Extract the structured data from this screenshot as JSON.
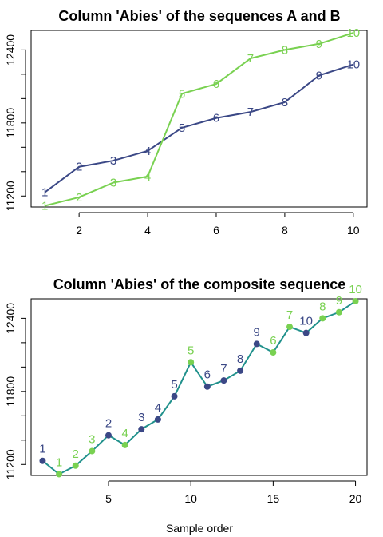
{
  "colors": {
    "seq_a": "#3b4886",
    "seq_b": "#79d151",
    "composite_line": "#21918c",
    "frame": "#000000"
  },
  "chart_data": [
    {
      "type": "line",
      "title": "Column 'Abies' of the sequences A and B",
      "xlabel": "",
      "ylabel": "",
      "xlim": [
        0.6,
        10.4
      ],
      "ylim": [
        11110,
        12560
      ],
      "x_ticks": [
        2,
        4,
        6,
        8,
        10
      ],
      "y_ticks": [
        11200,
        11800,
        12400
      ],
      "grid": false,
      "legend": "none",
      "series": [
        {
          "color_key": "seq_a",
          "x": [
            1,
            2,
            3,
            4,
            5,
            6,
            7,
            8,
            9,
            10
          ],
          "y": [
            11230,
            11440,
            11490,
            11570,
            11760,
            11840,
            11890,
            11970,
            12190,
            12280
          ],
          "labels": [
            "1",
            "2",
            "3",
            "4",
            "5",
            "6",
            "7",
            "8",
            "9",
            "10"
          ]
        },
        {
          "color_key": "seq_b",
          "x": [
            1,
            2,
            3,
            4,
            5,
            6,
            7,
            8,
            9,
            10
          ],
          "y": [
            11120,
            11190,
            11310,
            11360,
            12040,
            12120,
            12330,
            12400,
            12450,
            12540
          ],
          "labels": [
            "1",
            "2",
            "3",
            "4",
            "5",
            "6",
            "7",
            "8",
            "9",
            "10"
          ]
        }
      ]
    },
    {
      "type": "line",
      "title": "Column 'Abies' of the composite sequence",
      "xlabel": "Sample order",
      "ylabel": "",
      "xlim": [
        0.3,
        20.7
      ],
      "ylim": [
        11110,
        12560
      ],
      "x_ticks": [
        5,
        10,
        15,
        20
      ],
      "y_ticks": [
        11200,
        11800,
        12400
      ],
      "grid": false,
      "legend": "none",
      "x": [
        1,
        2,
        3,
        4,
        5,
        6,
        7,
        8,
        9,
        10,
        11,
        12,
        13,
        14,
        15,
        16,
        17,
        18,
        19,
        20
      ],
      "y": [
        11230,
        11120,
        11190,
        11310,
        11440,
        11360,
        11490,
        11570,
        11760,
        12040,
        11840,
        11890,
        11970,
        12190,
        12120,
        12330,
        12280,
        12400,
        12450,
        12540
      ],
      "point_labels": [
        "1",
        "1",
        "2",
        "3",
        "2",
        "4",
        "3",
        "4",
        "5",
        "5",
        "6",
        "7",
        "8",
        "9",
        "6",
        "7",
        "10",
        "8",
        "9",
        "10"
      ],
      "point_sequence": [
        "A",
        "B",
        "B",
        "B",
        "A",
        "B",
        "A",
        "A",
        "A",
        "B",
        "A",
        "A",
        "A",
        "A",
        "B",
        "B",
        "A",
        "B",
        "B",
        "B"
      ]
    }
  ]
}
